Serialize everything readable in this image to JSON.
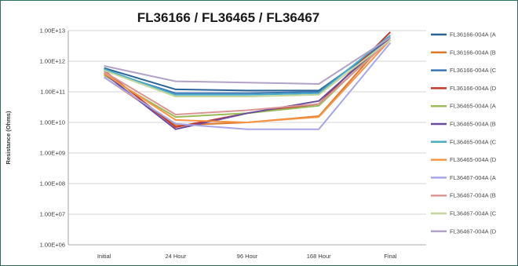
{
  "chart_data": {
    "type": "line",
    "title": "FL36166 / FL36465 / FL36467",
    "xlabel": "",
    "ylabel": "Resistance (Ohms)",
    "yscale": "log",
    "ylim": [
      1000000,
      10000000000000
    ],
    "y_tick_labels": [
      "1.00E+06",
      "1.00E+07",
      "1.00E+08",
      "1.00E+09",
      "1.00E+10",
      "1.00E+11",
      "1.00E+12",
      "1.00E+13"
    ],
    "grid": "horizontal",
    "legend_position": "right",
    "categories": [
      "Initial",
      "24 Hour",
      "96 Hour",
      "168 Hour",
      "Final"
    ],
    "series": [
      {
        "name": "FL36166-004A (A",
        "color": "#2a6496",
        "values": [
          600000000000,
          120000000000,
          110000000000,
          110000000000,
          5000000000000
        ]
      },
      {
        "name": "FL36166-004A (B",
        "color": "#e0782c",
        "values": [
          300000000000,
          8000000000,
          10000000000,
          16000000000,
          7000000000000
        ]
      },
      {
        "name": "FL36166-004A (C",
        "color": "#3a76b8",
        "values": [
          500000000000,
          90000000000,
          90000000000,
          100000000000,
          6000000000000
        ]
      },
      {
        "name": "FL36166-004A (D",
        "color": "#c0392b",
        "values": [
          500000000000,
          7000000000,
          20000000000,
          40000000000,
          9000000000000
        ]
      },
      {
        "name": "FL36465-004A (A",
        "color": "#9bbb59",
        "values": [
          350000000000,
          15000000000,
          20000000000,
          35000000000,
          6000000000000
        ]
      },
      {
        "name": "FL36465-004A (B",
        "color": "#6a4c9c",
        "values": [
          400000000000,
          6000000000,
          20000000000,
          50000000000,
          6000000000000
        ]
      },
      {
        "name": "FL36465-004A (C",
        "color": "#4bacc6",
        "values": [
          550000000000,
          80000000000,
          80000000000,
          90000000000,
          7000000000000
        ]
      },
      {
        "name": "FL36465-004A (D",
        "color": "#f79646",
        "values": [
          400000000000,
          12000000000,
          10000000000,
          15000000000,
          5000000000000
        ]
      },
      {
        "name": "FL36467-004A (A",
        "color": "#a6a6e8",
        "values": [
          300000000000,
          9000000000,
          6000000000,
          6000000000,
          4000000000000
        ]
      },
      {
        "name": "FL36467-004A (B",
        "color": "#d99694",
        "values": [
          450000000000,
          18000000000,
          25000000000,
          40000000000,
          5000000000000
        ]
      },
      {
        "name": "FL36467-004A (C",
        "color": "#c3d69b",
        "values": [
          500000000000,
          70000000000,
          70000000000,
          80000000000,
          5000000000000
        ]
      },
      {
        "name": "FL36467-004A (D",
        "color": "#b3a2c7",
        "values": [
          700000000000,
          220000000000,
          200000000000,
          180000000000,
          6000000000000
        ]
      }
    ]
  }
}
